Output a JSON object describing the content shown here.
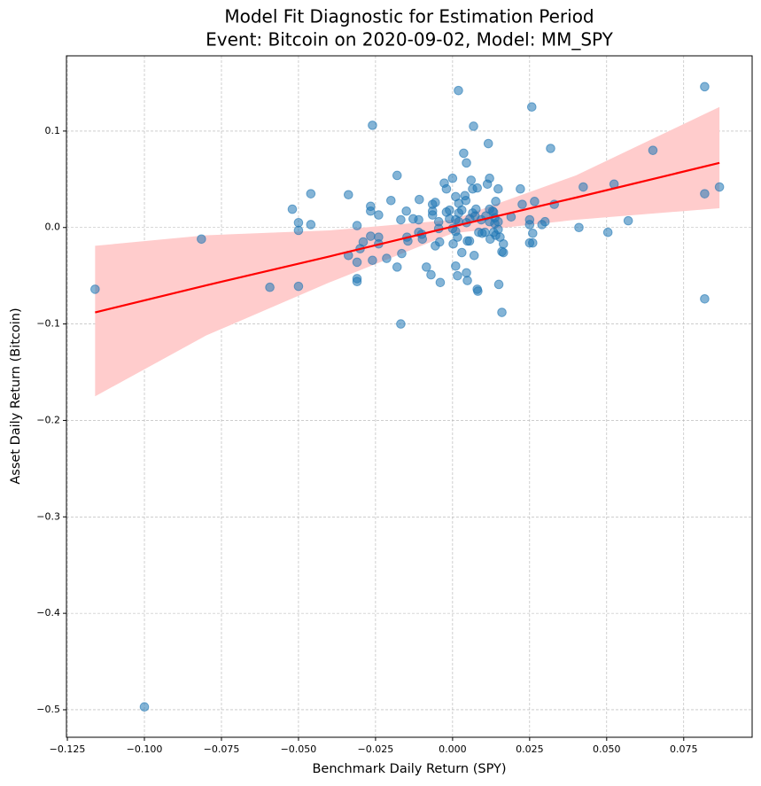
{
  "chart_data": {
    "type": "scatter",
    "title": "Model Fit Diagnostic for Estimation Period",
    "subtitle": "Event: Bitcoin on 2020-09-02, Model: MM_SPY",
    "xlabel": "Benchmark Daily Return (SPY)",
    "ylabel": "Asset Daily Return (Bitcoin)",
    "xlim": [
      -0.1253,
      0.0972
    ],
    "ylim": [
      -0.5285,
      0.178
    ],
    "xticks": [
      {
        "value": -0.125,
        "label": "−0.125"
      },
      {
        "value": -0.1,
        "label": "−0.100"
      },
      {
        "value": -0.075,
        "label": "−0.075"
      },
      {
        "value": -0.05,
        "label": "−0.050"
      },
      {
        "value": -0.025,
        "label": "−0.025"
      },
      {
        "value": 0,
        "label": "0.000"
      },
      {
        "value": 0.025,
        "label": "0.025"
      },
      {
        "value": 0.05,
        "label": "0.050"
      },
      {
        "value": 0.075,
        "label": "0.075"
      }
    ],
    "yticks": [
      {
        "value": -0.5,
        "label": "−0.5"
      },
      {
        "value": -0.4,
        "label": "−0.4"
      },
      {
        "value": -0.3,
        "label": "−0.3"
      },
      {
        "value": -0.2,
        "label": "−0.2"
      },
      {
        "value": -0.1,
        "label": "−0.1"
      },
      {
        "value": 0,
        "label": "0.0"
      },
      0.1
    ],
    "grid": true,
    "points": {
      "color": "#1f77b4",
      "x": [
        -0.116,
        -0.1,
        -0.0815,
        -0.0593,
        -0.052,
        -0.05,
        -0.05,
        -0.05,
        -0.046,
        -0.046,
        -0.0338,
        -0.0338,
        -0.031,
        -0.031,
        -0.031,
        -0.031,
        -0.03,
        -0.029,
        -0.0266,
        -0.0266,
        -0.0266,
        -0.026,
        -0.026,
        -0.024,
        -0.024,
        -0.024,
        -0.0214,
        -0.02,
        -0.018,
        -0.018,
        -0.0168,
        -0.0168,
        -0.0165,
        -0.015,
        -0.0148,
        -0.0145,
        -0.0128,
        -0.011,
        -0.011,
        -0.0108,
        -0.01,
        -0.0098,
        -0.0085,
        -0.007,
        -0.0065,
        -0.0065,
        -0.0065,
        -0.0056,
        -0.0056,
        -0.0045,
        -0.0045,
        -0.0042,
        -0.004,
        -0.0027,
        -0.002,
        -0.002,
        -0.001,
        -0.001,
        0,
        0,
        0.0002,
        0.001,
        0.001,
        0.001,
        0.001,
        0.0016,
        0.0016,
        0.0019,
        0.002,
        0.002,
        0.002,
        0.003,
        0.003,
        0.0036,
        0.004,
        0.0043,
        0.0045,
        0.0045,
        0.0045,
        0.0048,
        0.0048,
        0.0055,
        0.0056,
        0.006,
        0.0065,
        0.0065,
        0.0068,
        0.007,
        0.0073,
        0.0076,
        0.008,
        0.0082,
        0.008,
        0.0085,
        0.0093,
        0.0096,
        0.0105,
        0.0108,
        0.0113,
        0.0116,
        0.012,
        0.012,
        0.012,
        0.0122,
        0.013,
        0.0133,
        0.0133,
        0.0137,
        0.0137,
        0.014,
        0.014,
        0.0148,
        0.0148,
        0.0148,
        0.015,
        0.0154,
        0.016,
        0.016,
        0.0165,
        0.0165,
        0.019,
        0.022,
        0.0226,
        0.025,
        0.025,
        0.025,
        0.0257,
        0.026,
        0.026,
        0.0266,
        0.029,
        0.03,
        0.0318,
        0.033,
        0.041,
        0.0424,
        0.0504,
        0.0524,
        0.057,
        0.065,
        0.0818,
        0.0818,
        0.0818,
        0.0866
      ],
      "y": [
        -0.064,
        -0.497,
        -0.012,
        -0.062,
        0.019,
        0.005,
        -0.003,
        -0.061,
        0.035,
        0.003,
        0.034,
        -0.029,
        0.002,
        -0.036,
        -0.053,
        -0.056,
        -0.022,
        -0.015,
        0.022,
        0.017,
        -0.009,
        0.106,
        -0.034,
        0.013,
        -0.01,
        -0.017,
        -0.032,
        0.028,
        0.054,
        -0.041,
        -0.1,
        0.008,
        -0.027,
        0.017,
        -0.01,
        -0.014,
        0.009,
        0.008,
        -0.005,
        0.029,
        -0.007,
        -0.012,
        -0.041,
        -0.049,
        0.024,
        0.017,
        0.013,
        0.026,
        -0.019,
        0.006,
        -0.001,
        -0.015,
        -0.057,
        0.046,
        0.04,
        0.016,
        0.018,
        0.009,
        0.051,
        -0.001,
        -0.017,
        0.032,
        0.008,
        -0.004,
        -0.04,
        -0.01,
        -0.05,
        0.142,
        0.025,
        0.015,
        0.006,
        0.018,
        -0.026,
        0.077,
        0.033,
        0.028,
        0.067,
        0.005,
        -0.047,
        -0.055,
        -0.014,
        -0.014,
        0.009,
        0.049,
        0.04,
        0.015,
        0.105,
        -0.029,
        0.012,
        0.019,
        -0.064,
        -0.066,
        0.041,
        -0.005,
        0.008,
        -0.006,
        -0.005,
        0.012,
        0.045,
        0.087,
        0.051,
        0.019,
        0.006,
        -0.012,
        0.017,
        0.016,
        -0.005,
        0.01,
        0.004,
        -0.008,
        0.027,
        0.04,
        0.006,
        -0.002,
        -0.059,
        -0.01,
        -0.088,
        -0.025,
        -0.026,
        -0.017,
        0.011,
        0.04,
        0.024,
        -0.016,
        0.008,
        0.003,
        0.125,
        -0.006,
        -0.016,
        0.027,
        0.003,
        0.006,
        0.082,
        0.024,
        0,
        0.042,
        -0.005,
        0.045,
        0.007,
        0.08,
        0.146,
        0.035,
        -0.074,
        0.042
      ]
    },
    "fit": {
      "color": "#ff0000",
      "band_color": "#ffcccc",
      "x": [
        -0.116,
        -0.08,
        -0.04,
        0,
        0.04,
        0.0866
      ],
      "y": [
        -0.088,
        -0.06,
        -0.03,
        0.001,
        0.031,
        0.067
      ],
      "lower": [
        -0.175,
        -0.112,
        -0.057,
        -0.006,
        0.008,
        0.02
      ],
      "upper": [
        -0.019,
        -0.008,
        -0.003,
        0.008,
        0.054,
        0.125
      ]
    }
  }
}
